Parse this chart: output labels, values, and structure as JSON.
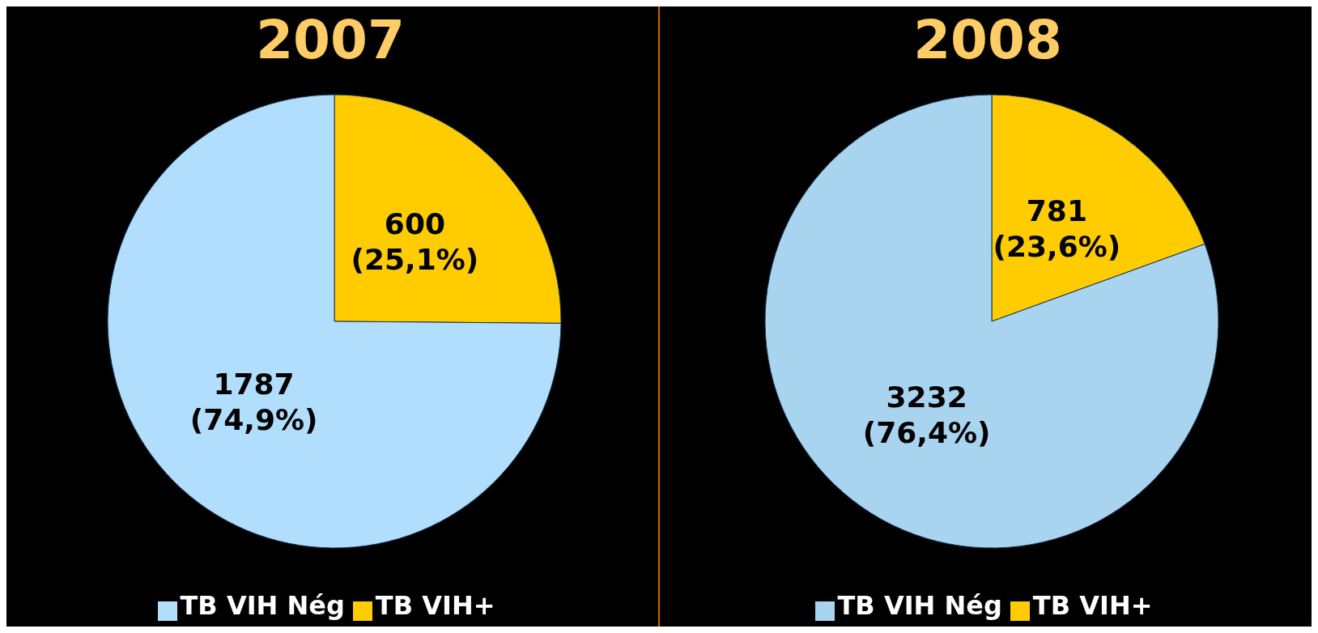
{
  "chart_data": [
    {
      "type": "pie",
      "title": "2007",
      "categories": [
        "TB VIH+",
        "TB VIH Nég"
      ],
      "values": [
        600,
        1787
      ],
      "colors": [
        "#ffcc00",
        "#b0defc"
      ],
      "value_labels": [
        "600\n(25,1%)",
        "1787\n(74,9%)"
      ],
      "legend": "bottom"
    },
    {
      "type": "pie",
      "title": "2008",
      "categories": [
        "TB VIH+",
        "TB VIH Nég"
      ],
      "values": [
        781,
        3232
      ],
      "colors": [
        "#ffcc00",
        "#a8d4f0"
      ],
      "value_labels": [
        "781\n(23,6%)",
        "3232\n(76,4%)"
      ],
      "legend": "bottom"
    }
  ]
}
